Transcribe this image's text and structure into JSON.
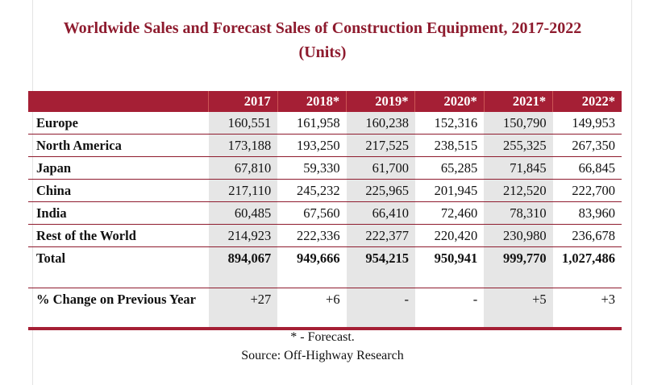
{
  "title_line1": "Worldwide Sales and Forecast Sales of Construction Equipment, 2017-2022",
  "title_line2": "(Units)",
  "table": {
    "columns": [
      "",
      "2017",
      "2018*",
      "2019*",
      "2020*",
      "2021*",
      "2022*"
    ],
    "rows": [
      {
        "label": "Europe",
        "values": [
          "160,551",
          "161,958",
          "160,238",
          "152,316",
          "150,790",
          "149,953"
        ]
      },
      {
        "label": "North America",
        "values": [
          "173,188",
          "193,250",
          "217,525",
          "238,515",
          "255,325",
          "267,350"
        ]
      },
      {
        "label": "Japan",
        "values": [
          "67,810",
          "59,330",
          "61,700",
          "65,285",
          "71,845",
          "66,845"
        ]
      },
      {
        "label": "China",
        "values": [
          "217,110",
          "245,232",
          "225,965",
          "201,945",
          "212,520",
          "222,700"
        ]
      },
      {
        "label": "India",
        "values": [
          "60,485",
          "67,560",
          "66,410",
          "72,460",
          "78,310",
          "83,960"
        ]
      },
      {
        "label": "Rest of the World",
        "values": [
          "214,923",
          "222,336",
          "222,377",
          "220,420",
          "230,980",
          "236,678"
        ]
      },
      {
        "label": "Total",
        "values": [
          "894,067",
          "949,666",
          "954,215",
          "950,941",
          "999,770",
          "1,027,486"
        ]
      },
      {
        "label": "% Change on Previous Year",
        "values": [
          "+27",
          "+6",
          "-",
          "-",
          "+5",
          "+3"
        ]
      }
    ]
  },
  "footnote": "* - Forecast.",
  "source": "Source: Off-Highway Research",
  "colors": {
    "accent": "#a51f35",
    "title": "#8e1b2e",
    "shade": "#e6e6e6"
  }
}
